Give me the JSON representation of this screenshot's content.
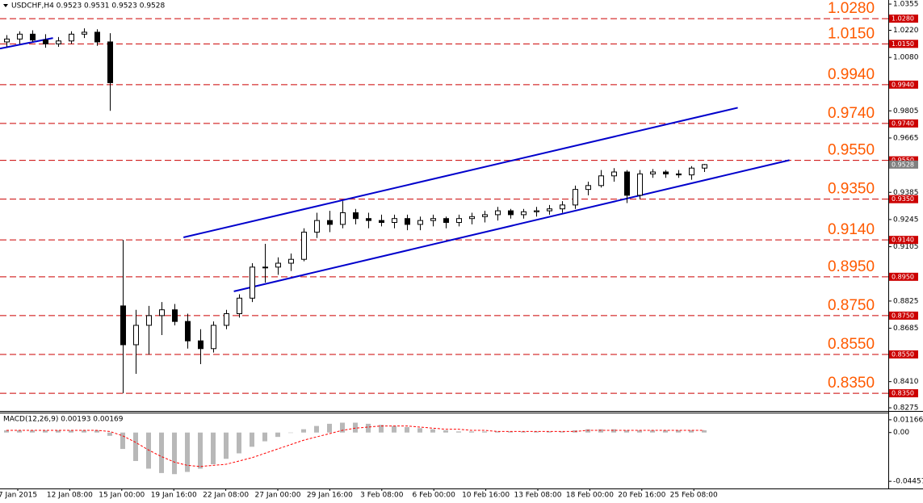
{
  "chart_data": {
    "type": "candlestick",
    "title": "USDCHF,H4  0.9523 0.9531 0.9523 0.9528",
    "ylim": [
      0.8263,
      1.0376
    ],
    "yticks": [
      {
        "value": 1.0355,
        "label": "1.0355"
      },
      {
        "value": 1.022,
        "label": "1.0220"
      },
      {
        "value": 1.008,
        "label": "1.0080"
      },
      {
        "value": 0.9805,
        "label": "0.9805"
      },
      {
        "value": 0.9665,
        "label": "0.9665"
      },
      {
        "value": 0.9385,
        "label": "0.9385"
      },
      {
        "value": 0.9245,
        "label": "0.9245"
      },
      {
        "value": 0.9105,
        "label": "0.9105"
      },
      {
        "value": 0.8825,
        "label": "0.8825"
      },
      {
        "value": 0.8685,
        "label": "0.8685"
      },
      {
        "value": 0.841,
        "label": "0.8410"
      },
      {
        "value": 0.8275,
        "label": "0.8275"
      }
    ],
    "levels": [
      {
        "value": 1.028,
        "label": "1.0280"
      },
      {
        "value": 1.015,
        "label": "1.0150"
      },
      {
        "value": 0.994,
        "label": "0.9940"
      },
      {
        "value": 0.974,
        "label": "0.9740"
      },
      {
        "value": 0.955,
        "label": "0.9550"
      },
      {
        "value": 0.935,
        "label": "0.9350"
      },
      {
        "value": 0.914,
        "label": "0.9140"
      },
      {
        "value": 0.895,
        "label": "0.8950"
      },
      {
        "value": 0.875,
        "label": "0.8750"
      },
      {
        "value": 0.855,
        "label": "0.8550"
      },
      {
        "value": 0.835,
        "label": "0.8350"
      }
    ],
    "level_color": "#cc0000",
    "current_price": {
      "value": 0.9528,
      "label": "0.9528"
    },
    "categories": [
      "7 Jan 2015",
      "12 Jan 08:00",
      "15 Jan 00:00",
      "19 Jan 16:00",
      "22 Jan 08:00",
      "27 Jan 00:00",
      "29 Jan 16:00",
      "3 Feb 08:00",
      "6 Feb 00:00",
      "10 Feb 16:00",
      "13 Feb 08:00",
      "18 Feb 00:00",
      "20 Feb 16:00",
      "25 Feb 08:00"
    ],
    "ohlc": [
      [
        1.016,
        1.0195,
        1.0135,
        1.0175
      ],
      [
        1.0175,
        1.0215,
        1.015,
        1.02
      ],
      [
        1.02,
        1.022,
        1.016,
        1.017
      ],
      [
        1.017,
        1.02,
        1.013,
        1.015
      ],
      [
        1.015,
        1.0185,
        1.0135,
        1.0165
      ],
      [
        1.0165,
        1.0215,
        1.015,
        1.02
      ],
      [
        1.02,
        1.023,
        1.018,
        1.021
      ],
      [
        1.021,
        1.0225,
        1.014,
        1.016
      ],
      [
        1.016,
        1.0205,
        0.9805,
        0.995
      ],
      [
        0.88,
        0.914,
        0.835,
        0.86
      ],
      [
        0.86,
        0.878,
        0.845,
        0.87
      ],
      [
        0.87,
        0.88,
        0.855,
        0.875
      ],
      [
        0.875,
        0.882,
        0.865,
        0.878
      ],
      [
        0.878,
        0.881,
        0.87,
        0.872
      ],
      [
        0.872,
        0.876,
        0.858,
        0.862
      ],
      [
        0.862,
        0.868,
        0.85,
        0.858
      ],
      [
        0.858,
        0.872,
        0.856,
        0.87
      ],
      [
        0.87,
        0.878,
        0.868,
        0.876
      ],
      [
        0.876,
        0.886,
        0.874,
        0.884
      ],
      [
        0.884,
        0.902,
        0.882,
        0.9
      ],
      [
        0.9,
        0.912,
        0.892,
        0.9
      ],
      [
        0.9,
        0.905,
        0.896,
        0.902
      ],
      [
        0.902,
        0.907,
        0.898,
        0.904
      ],
      [
        0.904,
        0.92,
        0.903,
        0.918
      ],
      [
        0.918,
        0.928,
        0.915,
        0.924
      ],
      [
        0.924,
        0.929,
        0.918,
        0.922
      ],
      [
        0.922,
        0.934,
        0.92,
        0.928
      ],
      [
        0.928,
        0.93,
        0.922,
        0.925
      ],
      [
        0.925,
        0.928,
        0.92,
        0.924
      ],
      [
        0.924,
        0.927,
        0.921,
        0.923
      ],
      [
        0.923,
        0.927,
        0.92,
        0.925
      ],
      [
        0.925,
        0.927,
        0.919,
        0.922
      ],
      [
        0.922,
        0.926,
        0.919,
        0.924
      ],
      [
        0.924,
        0.927,
        0.921,
        0.925
      ],
      [
        0.925,
        0.926,
        0.92,
        0.923
      ],
      [
        0.923,
        0.927,
        0.921,
        0.925
      ],
      [
        0.925,
        0.928,
        0.922,
        0.926
      ],
      [
        0.926,
        0.929,
        0.923,
        0.927
      ],
      [
        0.927,
        0.931,
        0.924,
        0.929
      ],
      [
        0.929,
        0.93,
        0.925,
        0.927
      ],
      [
        0.927,
        0.93,
        0.925,
        0.9285
      ],
      [
        0.9285,
        0.931,
        0.926,
        0.929
      ],
      [
        0.929,
        0.932,
        0.927,
        0.93
      ],
      [
        0.93,
        0.934,
        0.928,
        0.932
      ],
      [
        0.932,
        0.942,
        0.93,
        0.94
      ],
      [
        0.94,
        0.944,
        0.937,
        0.942
      ],
      [
        0.942,
        0.95,
        0.941,
        0.947
      ],
      [
        0.947,
        0.951,
        0.944,
        0.949
      ],
      [
        0.949,
        0.95,
        0.933,
        0.937
      ],
      [
        0.937,
        0.95,
        0.935,
        0.948
      ],
      [
        0.948,
        0.9505,
        0.946,
        0.949
      ],
      [
        0.949,
        0.95,
        0.946,
        0.948
      ],
      [
        0.948,
        0.95,
        0.946,
        0.9475
      ],
      [
        0.9475,
        0.952,
        0.945,
        0.951
      ],
      [
        0.951,
        0.9531,
        0.949,
        0.9528
      ]
    ],
    "trendlines": [
      {
        "color": "#0000cc",
        "points": [
          [
            13.7,
            0.9153
          ],
          [
            56.6,
            0.9821
          ]
        ]
      },
      {
        "color": "#0000cc",
        "points": [
          [
            17.6,
            0.8875
          ],
          [
            60.6,
            0.9551
          ]
        ]
      },
      {
        "color": "#0000cc",
        "points": [
          [
            -0.5,
            1.0126
          ],
          [
            3.6,
            1.018
          ]
        ]
      }
    ],
    "macd": {
      "title": "MACD(12,26,9) 0.00193 0.00169",
      "ylim": [
        -0.0511,
        0.0175
      ],
      "yticks": [
        {
          "value": 0.01166,
          "label": "0.01166"
        },
        {
          "value": 0,
          "label": "0.00"
        },
        {
          "value": -0.04457,
          "label": "-0.04457"
        }
      ],
      "histogram": [
        0.002,
        0.002,
        0.002,
        0.002,
        0.002,
        0.002,
        0.002,
        0.002,
        -0.003,
        -0.015,
        -0.026,
        -0.033,
        -0.037,
        -0.038,
        -0.036,
        -0.033,
        -0.029,
        -0.024,
        -0.019,
        -0.013,
        -0.008,
        -0.004,
        0,
        0.003,
        0.006,
        0.008,
        0.009,
        0.009,
        0.008,
        0.007,
        0.006,
        0.005,
        0.004,
        0.003,
        0.002,
        0.001,
        0.001,
        0.001,
        0.001,
        0.001,
        0.001,
        0.001,
        0.001,
        0.001,
        0.002,
        0.003,
        0.003,
        0.003,
        0.002,
        0.002,
        0.002,
        0.002,
        0.002,
        0.002,
        0.002
      ],
      "signal": [
        0.002,
        0.002,
        0.002,
        0.002,
        0.002,
        0.002,
        0.002,
        0.002,
        0.001,
        -0.003,
        -0.009,
        -0.016,
        -0.022,
        -0.027,
        -0.03,
        -0.031,
        -0.03,
        -0.029,
        -0.026,
        -0.023,
        -0.019,
        -0.015,
        -0.011,
        -0.007,
        -0.004,
        -0.001,
        0.002,
        0.004,
        0.005,
        0.006,
        0.006,
        0.006,
        0.005,
        0.004,
        0.003,
        0.003,
        0.002,
        0.002,
        0.001,
        0.001,
        0.001,
        0.001,
        0.001,
        0.001,
        0.001,
        0.002,
        0.002,
        0.002,
        0.002,
        0.002,
        0.002,
        0.002,
        0.002,
        0.002,
        0.002
      ],
      "histogram_color": "#b8b8b8",
      "signal_color": "#ff0000"
    }
  }
}
